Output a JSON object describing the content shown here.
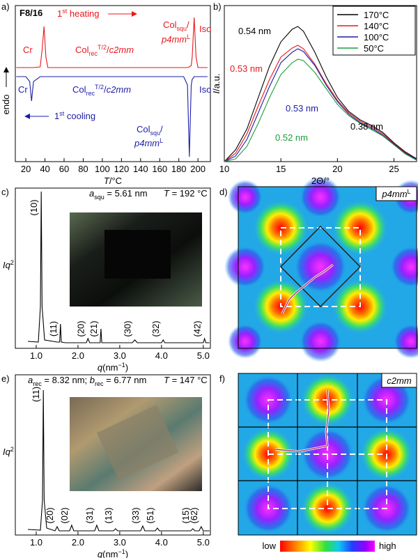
{
  "chart_data": [
    {
      "type": "line",
      "panel_label": "a)",
      "title": "F8/16",
      "x_label": {
        "segments": [
          {
            "text": "T",
            "style": "italic"
          },
          {
            "text": "/°C"
          }
        ]
      },
      "y_label": "endo",
      "xlim": [
        9,
        213
      ],
      "xticks": [
        20,
        40,
        60,
        80,
        100,
        120,
        140,
        160,
        180,
        200
      ],
      "ylim": [
        0,
        224
      ],
      "x": [
        10,
        20,
        24,
        26,
        28,
        35,
        37,
        39,
        41,
        43,
        100,
        185,
        189,
        191,
        193,
        194,
        196,
        198,
        200,
        210
      ],
      "series": [
        {
          "color": "#e8161b",
          "values": [
            135,
            135,
            135,
            135,
            135,
            136,
            160,
            194,
            150,
            135,
            135,
            135,
            135,
            136,
            138,
            150,
            207,
            150,
            135,
            135
          ]
        },
        {
          "color": "#1c1ca8",
          "values": [
            122,
            122,
            115,
            87,
            115,
            122,
            122,
            122,
            122,
            122,
            122,
            122,
            110,
            7,
            110,
            118,
            122,
            122,
            122,
            122
          ]
        }
      ],
      "annotations": [
        {
          "color": "#e8161b",
          "segments": [
            {
              "text": "Cr"
            }
          ]
        },
        {
          "color": "#e8161b",
          "segments": [
            {
              "text": "1"
            },
            {
              "text": "st",
              "style": "sup"
            },
            {
              "text": " heating"
            }
          ]
        },
        {
          "color": "#e8161b",
          "segments": [
            {
              "text": "Col"
            },
            {
              "text": "rec",
              "style": "sub"
            },
            {
              "text": "T/2",
              "style": "sup"
            },
            {
              "text": "/"
            },
            {
              "text": "c2mm",
              "style": "italic"
            }
          ]
        },
        {
          "color": "#e8161b",
          "segments": [
            {
              "text": "Col"
            },
            {
              "text": "squ",
              "style": "sub"
            },
            {
              "text": "/"
            }
          ]
        },
        {
          "color": "#e8161b",
          "segments": [
            {
              "text": "p4mm",
              "style": "italic"
            },
            {
              "text": "L",
              "style": "sup"
            }
          ]
        },
        {
          "color": "#e8161b",
          "segments": [
            {
              "text": "Iso"
            }
          ]
        },
        {
          "color": "#1c1ca8",
          "segments": [
            {
              "text": "Cr"
            }
          ]
        },
        {
          "color": "#1c1ca8",
          "segments": [
            {
              "text": "Col"
            },
            {
              "text": "rec",
              "style": "sub"
            },
            {
              "text": "T/2",
              "style": "sup"
            },
            {
              "text": "/"
            },
            {
              "text": "c2mm",
              "style": "italic"
            }
          ]
        },
        {
          "color": "#1c1ca8",
          "segments": [
            {
              "text": "Iso"
            }
          ]
        },
        {
          "color": "#1c1ca8",
          "segments": [
            {
              "text": "1"
            },
            {
              "text": "st",
              "style": "sup"
            },
            {
              "text": " cooling"
            }
          ]
        },
        {
          "color": "#1c1ca8",
          "segments": [
            {
              "text": "Col"
            },
            {
              "text": "squ",
              "style": "sub"
            },
            {
              "text": "/"
            }
          ]
        },
        {
          "color": "#1c1ca8",
          "segments": [
            {
              "text": "p4mm",
              "style": "italic"
            },
            {
              "text": "L",
              "style": "sup"
            }
          ]
        }
      ]
    },
    {
      "type": "line",
      "panel_label": "b)",
      "x_label": "2Θ/°",
      "y_label": {
        "segments": [
          {
            "text": "I",
            "style": "italic"
          },
          {
            "text": "/a.u."
          }
        ]
      },
      "xlim": [
        10,
        27
      ],
      "xticks": [
        10,
        15,
        20,
        25
      ],
      "ylim": [
        0,
        224
      ],
      "legend": "top-right",
      "x": [
        10,
        11,
        12,
        13,
        14,
        15,
        16,
        16.5,
        17,
        18,
        19,
        20,
        21,
        22,
        23,
        24,
        25,
        26,
        27
      ],
      "series": [
        {
          "name": "170°C",
          "color": "#000000",
          "values": [
            0,
            17,
            47,
            92,
            137,
            172,
            190,
            194,
            187,
            157,
            122,
            92,
            72,
            60,
            52,
            42,
            27,
            14,
            4
          ]
        },
        {
          "name": "140°C",
          "color": "#e8161b",
          "values": [
            0,
            12,
            40,
            80,
            118,
            150,
            163,
            167,
            162,
            140,
            112,
            88,
            70,
            58,
            50,
            40,
            26,
            13,
            3
          ]
        },
        {
          "name": "100°C",
          "color": "#1c1ca8",
          "values": [
            0,
            8,
            32,
            70,
            108,
            142,
            157,
            162,
            158,
            138,
            110,
            86,
            68,
            56,
            48,
            38,
            25,
            12,
            3
          ]
        },
        {
          "name": "50°C",
          "color": "#1a9e3a",
          "values": [
            0,
            4,
            22,
            55,
            92,
            125,
            142,
            147,
            145,
            128,
            105,
            82,
            66,
            55,
            46,
            37,
            24,
            11,
            2
          ]
        }
      ],
      "annotations": [
        {
          "color": "#000000",
          "segments": [
            {
              "text": "0.54 nm"
            }
          ]
        },
        {
          "color": "#e8161b",
          "segments": [
            {
              "text": "0.53 nm"
            }
          ]
        },
        {
          "color": "#1c1ca8",
          "segments": [
            {
              "text": "0.53 nm"
            }
          ]
        },
        {
          "color": "#1a9e3a",
          "segments": [
            {
              "text": "0.52 nm"
            }
          ]
        },
        {
          "color": "#000000",
          "segments": [
            {
              "text": "0.38 nm"
            }
          ]
        }
      ]
    },
    {
      "type": "line",
      "panel_label": "c)",
      "x_label": {
        "segments": [
          {
            "text": "q",
            "style": "italic"
          },
          {
            "text": "(nm"
          },
          {
            "text": "−1",
            "style": "sup"
          },
          {
            "text": ")"
          }
        ]
      },
      "y_label": {
        "segments": [
          {
            "text": "Iq",
            "style": "italic"
          },
          {
            "text": "2",
            "style": "sup"
          }
        ]
      },
      "xlim": [
        0.5,
        5.17
      ],
      "ylim": [
        0,
        230
      ],
      "xticks": [
        {
          "value": 1,
          "label": "1.0"
        },
        {
          "value": 2,
          "label": "2.0"
        },
        {
          "value": 3,
          "label": "3.0"
        },
        {
          "value": 4,
          "label": "4.0"
        },
        {
          "value": 5,
          "label": "5.0"
        }
      ],
      "x": [
        0.8,
        1.05,
        1.1,
        1.12,
        1.14,
        1.2,
        1.5,
        1.56,
        1.58,
        1.6,
        1.7,
        2.2,
        2.24,
        2.28,
        2.5,
        2.53,
        2.55,
        2.57,
        2.65,
        3.3,
        3.36,
        3.42,
        4.0,
        4.04,
        4.08,
        5.0,
        5.03,
        5.06,
        5.15
      ],
      "series": [
        {
          "color": "#000000",
          "values": [
            10,
            9,
            60,
            225,
            60,
            12,
            9,
            9,
            35,
            9,
            8,
            8,
            14,
            8,
            8,
            8,
            28,
            8,
            8,
            8,
            12,
            8,
            8,
            12,
            8,
            8,
            14,
            8,
            8
          ]
        }
      ],
      "peak_labels": [
        {
          "text": "(10)",
          "x": 1.12
        },
        {
          "text": "(11)",
          "x": 1.58
        },
        {
          "text": "(20)",
          "x": 2.24
        },
        {
          "text": "(21)",
          "x": 2.55
        },
        {
          "text": "(30)",
          "x": 3.36
        },
        {
          "text": "(32)",
          "x": 4.04
        },
        {
          "text": "(42)",
          "x": 5.03
        }
      ],
      "annotations": [
        {
          "color": "#000000",
          "segments": [
            {
              "text": "a",
              "style": "italic"
            },
            {
              "text": "squ",
              "style": "sub"
            },
            {
              "text": " = 5.61 nm"
            }
          ]
        },
        {
          "color": "#000000",
          "segments": [
            {
              "text": "T",
              "style": "italic"
            },
            {
              "text": " = 192 °C"
            }
          ]
        }
      ]
    },
    {
      "type": "line",
      "panel_label": "e)",
      "x_label": {
        "segments": [
          {
            "text": "q",
            "style": "italic"
          },
          {
            "text": "(nm"
          },
          {
            "text": "−1",
            "style": "sup"
          },
          {
            "text": ")"
          }
        ]
      },
      "y_label": {
        "segments": [
          {
            "text": "Iq",
            "style": "italic"
          },
          {
            "text": "2",
            "style": "sup"
          }
        ]
      },
      "xlim": [
        0.5,
        5.17
      ],
      "ylim": [
        0,
        230
      ],
      "xticks": [
        {
          "value": 1,
          "label": "1.0"
        },
        {
          "value": 2,
          "label": "2.0"
        },
        {
          "value": 3,
          "label": "3.0"
        },
        {
          "value": 4,
          "label": "4.0"
        },
        {
          "value": 5,
          "label": "5.0"
        }
      ],
      "x": [
        0.8,
        1.1,
        1.15,
        1.17,
        1.19,
        1.25,
        1.45,
        1.5,
        1.55,
        1.8,
        1.85,
        1.9,
        2.4,
        2.45,
        2.5,
        2.85,
        2.9,
        2.95,
        3.5,
        3.55,
        3.6,
        3.85,
        3.9,
        3.95,
        4.7,
        4.75,
        4.8,
        4.9,
        4.95,
        5.0,
        5.15
      ],
      "series": [
        {
          "color": "#000000",
          "values": [
            8,
            7,
            50,
            208,
            50,
            10,
            6,
            12,
            6,
            6,
            14,
            6,
            6,
            14,
            6,
            6,
            9,
            6,
            6,
            13,
            6,
            6,
            10,
            6,
            6,
            9,
            6,
            6,
            12,
            6,
            6
          ]
        }
      ],
      "peak_labels": [
        {
          "text": "(11)",
          "x": 1.17
        },
        {
          "text": "(20)",
          "x": 1.5
        },
        {
          "text": "(02)",
          "x": 1.85
        },
        {
          "text": "(31)",
          "x": 2.45
        },
        {
          "text": "(13)",
          "x": 2.9
        },
        {
          "text": "(33)",
          "x": 3.55
        },
        {
          "text": "(51)",
          "x": 3.9
        },
        {
          "text": "(15)",
          "x": 4.75
        },
        {
          "text": "(62)",
          "x": 4.95
        }
      ],
      "annotations": [
        {
          "color": "#000000",
          "segments": [
            {
              "text": "a",
              "style": "italic"
            },
            {
              "text": "rec",
              "style": "sub"
            },
            {
              "text": " = 8.32 nm; "
            },
            {
              "text": "b",
              "style": "italic"
            },
            {
              "text": "rec",
              "style": "sub"
            },
            {
              "text": " = 6.77 nm"
            }
          ]
        },
        {
          "color": "#000000",
          "segments": [
            {
              "text": "T",
              "style": "italic"
            },
            {
              "text": " = 147 °C"
            }
          ]
        }
      ]
    }
  ],
  "maps": [
    {
      "panel_label": "d)",
      "label": {
        "segments": [
          {
            "text": "p4mm",
            "style": "italic"
          },
          {
            "text": "L",
            "style": "sup"
          }
        ]
      }
    },
    {
      "panel_label": "f)",
      "label": {
        "segments": [
          {
            "text": "c2mm",
            "style": "italic"
          }
        ]
      },
      "colorbar": {
        "low": "low",
        "high": "high"
      }
    }
  ]
}
